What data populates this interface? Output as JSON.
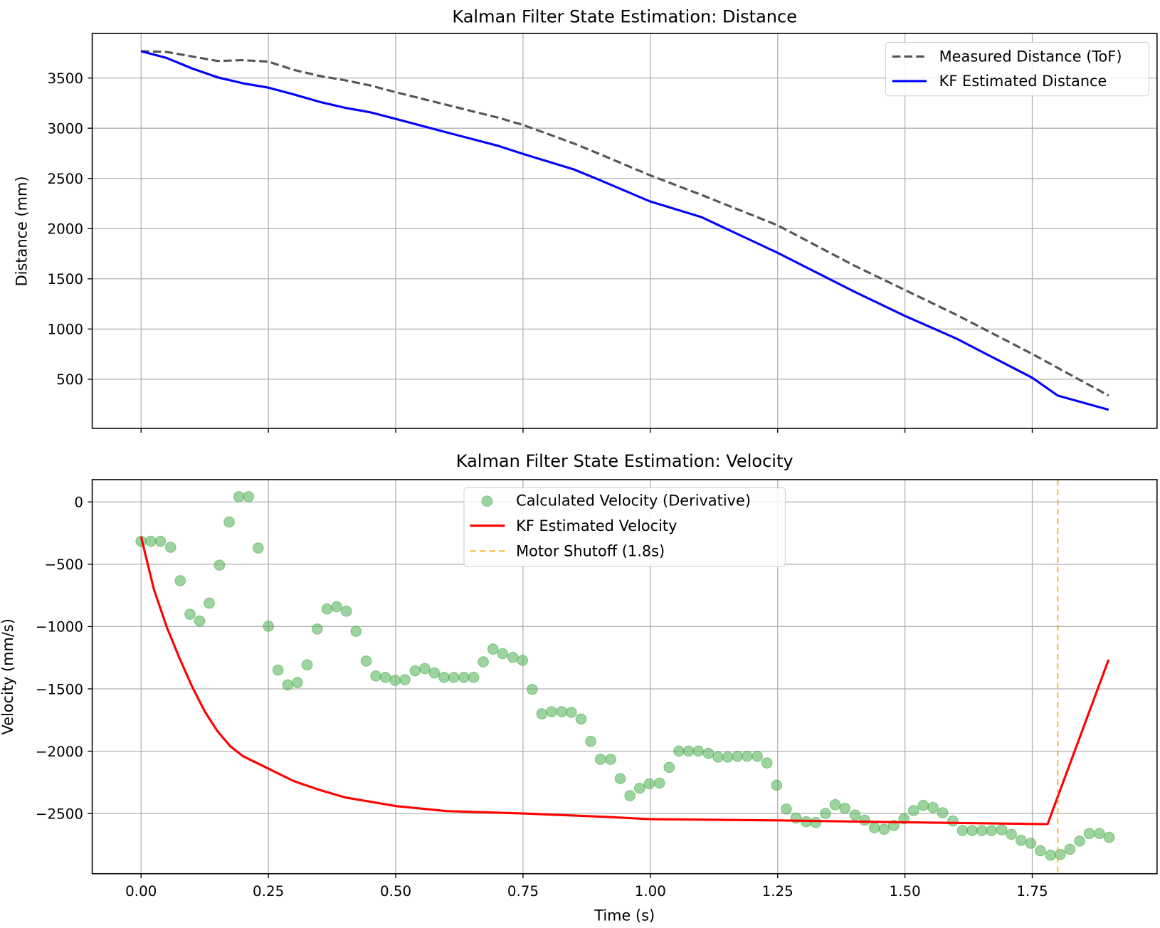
{
  "chart_data": [
    {
      "type": "line",
      "title": "Kalman Filter State Estimation: Distance",
      "xlabel": "",
      "ylabel": "Distance (mm)",
      "xlim": [
        -0.096,
        1.995
      ],
      "ylim": [
        11,
        3944
      ],
      "grid": true,
      "legend": "top-right",
      "xticks": [
        0,
        0.25,
        0.5,
        0.75,
        1.0,
        1.25,
        1.5,
        1.75
      ],
      "xtick_labels": [],
      "yticks": [
        500,
        1000,
        1500,
        2000,
        2500,
        3000,
        3500
      ],
      "ytick_labels": [
        "500",
        "1000",
        "1500",
        "2000",
        "2500",
        "3000",
        "3500"
      ],
      "series": [
        {
          "name": "Measured Distance (ToF)",
          "color": "#555555",
          "style": "dashed",
          "x": [
            0,
            0.05,
            0.1,
            0.15,
            0.2,
            0.25,
            0.3,
            0.35,
            0.4,
            0.45,
            0.5,
            0.6,
            0.7,
            0.75,
            0.85,
            0.9,
            1.0,
            1.1,
            1.25,
            1.4,
            1.5,
            1.6,
            1.75,
            1.9
          ],
          "y": [
            3767,
            3760,
            3715,
            3670,
            3678,
            3663,
            3581,
            3522,
            3478,
            3426,
            3359,
            3233,
            3107,
            3033,
            2848,
            2744,
            2530,
            2337,
            2033,
            1633,
            1389,
            1144,
            752,
            337
          ]
        },
        {
          "name": "KF Estimated Distance",
          "color": "#0000ff",
          "style": "solid",
          "x": [
            0,
            0.05,
            0.1,
            0.15,
            0.2,
            0.25,
            0.3,
            0.35,
            0.4,
            0.45,
            0.5,
            0.6,
            0.7,
            0.75,
            0.85,
            0.9,
            1.0,
            1.1,
            1.25,
            1.4,
            1.5,
            1.6,
            1.75,
            1.8,
            1.9
          ],
          "y": [
            3767,
            3700,
            3596,
            3507,
            3448,
            3404,
            3337,
            3263,
            3204,
            3159,
            3093,
            2959,
            2826,
            2744,
            2589,
            2485,
            2270,
            2115,
            1759,
            1374,
            1130,
            907,
            515,
            337,
            196
          ]
        }
      ]
    },
    {
      "type": "scatter+line",
      "title": "Kalman Filter State Estimation: Velocity",
      "xlabel": "Time (s)",
      "ylabel": "Velocity (mm/s)",
      "xlim": [
        -0.096,
        1.995
      ],
      "ylim": [
        -2983,
        179
      ],
      "grid": true,
      "legend": "top-center",
      "xticks": [
        0,
        0.25,
        0.5,
        0.75,
        1.0,
        1.25,
        1.5,
        1.75
      ],
      "xtick_labels": [
        "0.00",
        "0.25",
        "0.50",
        "0.75",
        "1.00",
        "1.25",
        "1.50",
        "1.75"
      ],
      "yticks": [
        0,
        -500,
        -1000,
        -1500,
        -2000,
        -2500
      ],
      "ytick_labels": [
        "0",
        "−500",
        "−1000",
        "−1500",
        "−2000",
        "−2500"
      ],
      "series": [
        {
          "name": "Calculated Velocity (Derivative)",
          "color": "#4caf50",
          "style": "markers",
          "x": [
            0.0,
            0.019,
            0.038,
            0.058,
            0.077,
            0.096,
            0.115,
            0.134,
            0.154,
            0.173,
            0.192,
            0.211,
            0.23,
            0.25,
            0.269,
            0.288,
            0.307,
            0.326,
            0.346,
            0.365,
            0.384,
            0.403,
            0.422,
            0.442,
            0.461,
            0.48,
            0.499,
            0.518,
            0.538,
            0.557,
            0.576,
            0.595,
            0.614,
            0.634,
            0.653,
            0.672,
            0.691,
            0.71,
            0.73,
            0.749,
            0.768,
            0.787,
            0.806,
            0.826,
            0.845,
            0.864,
            0.883,
            0.902,
            0.922,
            0.941,
            0.96,
            0.979,
            0.998,
            1.018,
            1.037,
            1.056,
            1.075,
            1.094,
            1.114,
            1.133,
            1.152,
            1.171,
            1.19,
            1.21,
            1.229,
            1.248,
            1.267,
            1.286,
            1.306,
            1.325,
            1.344,
            1.363,
            1.382,
            1.402,
            1.421,
            1.44,
            1.459,
            1.478,
            1.498,
            1.517,
            1.536,
            1.555,
            1.574,
            1.594,
            1.613,
            1.632,
            1.651,
            1.67,
            1.69,
            1.709,
            1.728,
            1.747,
            1.766,
            1.786,
            1.805,
            1.824,
            1.843,
            1.862,
            1.882,
            1.901
          ],
          "y": [
            -316,
            -316,
            -316,
            -364,
            -632,
            -901,
            -955,
            -812,
            -507,
            -161,
            42,
            42,
            -370,
            -997,
            -1349,
            -1468,
            -1450,
            -1307,
            -1020,
            -859,
            -841,
            -877,
            -1038,
            -1277,
            -1396,
            -1408,
            -1432,
            -1426,
            -1355,
            -1337,
            -1372,
            -1408,
            -1408,
            -1408,
            -1408,
            -1283,
            -1181,
            -1217,
            -1247,
            -1271,
            -1504,
            -1700,
            -1683,
            -1683,
            -1689,
            -1742,
            -1921,
            -2065,
            -2065,
            -2220,
            -2357,
            -2297,
            -2262,
            -2256,
            -2130,
            -1999,
            -1999,
            -1999,
            -2017,
            -2047,
            -2047,
            -2041,
            -2041,
            -2041,
            -2094,
            -2273,
            -2464,
            -2536,
            -2566,
            -2572,
            -2500,
            -2429,
            -2458,
            -2512,
            -2554,
            -2614,
            -2626,
            -2596,
            -2542,
            -2476,
            -2435,
            -2452,
            -2494,
            -2560,
            -2637,
            -2637,
            -2637,
            -2637,
            -2631,
            -2667,
            -2715,
            -2739,
            -2799,
            -2834,
            -2828,
            -2787,
            -2721,
            -2661,
            -2661,
            -2691
          ]
        },
        {
          "name": "KF Estimated Velocity",
          "color": "#ff0000",
          "style": "solid",
          "x": [
            0,
            0.025,
            0.05,
            0.075,
            0.1,
            0.125,
            0.15,
            0.175,
            0.2,
            0.25,
            0.3,
            0.35,
            0.4,
            0.5,
            0.6,
            0.75,
            0.9,
            1.0,
            1.25,
            1.5,
            1.78,
            1.9
          ],
          "y": [
            -280,
            -700,
            -1000,
            -1250,
            -1480,
            -1680,
            -1840,
            -1960,
            -2040,
            -2140,
            -2240,
            -2310,
            -2370,
            -2440,
            -2480,
            -2500,
            -2525,
            -2545,
            -2555,
            -2570,
            -2585,
            -1265
          ]
        },
        {
          "name": "Motor Shutoff (1.8s)",
          "color": "#ffa500",
          "style": "dashed-vline",
          "x": 1.8
        }
      ]
    }
  ]
}
